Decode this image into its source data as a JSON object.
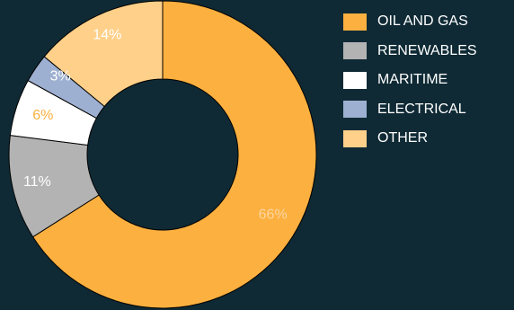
{
  "chart_data": {
    "type": "pie",
    "variant": "donut",
    "categories": [
      "OIL AND GAS",
      "RENEWABLES",
      "MARITIME",
      "ELECTRICAL",
      "OTHER"
    ],
    "values": [
      66,
      11,
      6,
      3,
      14
    ],
    "value_labels": [
      "66%",
      "11%",
      "6%",
      "3%",
      "14%"
    ],
    "colors": [
      "#fbb040",
      "#b3b3b3",
      "#ffffff",
      "#9eb0d1",
      "#ffd089"
    ],
    "label_colors": [
      "#ffd6a0",
      "#ffffff",
      "#fbb040",
      "#ffffff",
      "#ffffff"
    ],
    "legend_placement": "right",
    "title": "",
    "xlabel": "",
    "ylabel": ""
  }
}
